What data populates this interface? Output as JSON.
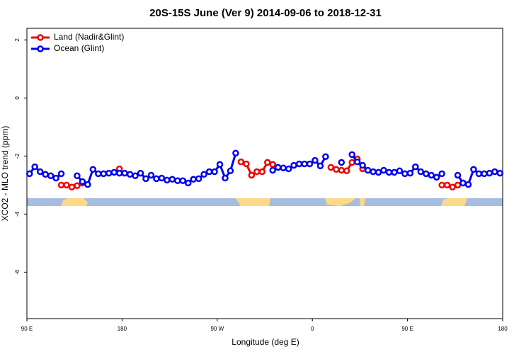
{
  "chart_data": {
    "type": "line",
    "title": "20S-15S June (Ver 9)   2014-09-06 to 2018-12-31",
    "x_label": "Longitude (deg E)",
    "y_label": "XCO2 - MLO trend (ppm)",
    "xlim": [
      90,
      540
    ],
    "ylim": [
      -7.6,
      2.4
    ],
    "xticks": [
      {
        "value": 90,
        "label": "90 E"
      },
      180,
      {
        "value": 270,
        "label": "90 W"
      },
      {
        "value": 360,
        "label": "0"
      },
      {
        "value": 450,
        "label": "90 E"
      },
      {
        "value": 540,
        "label": "180"
      }
    ],
    "yticks": [
      2,
      0,
      -2,
      -4,
      -6
    ],
    "legend": "top-left",
    "series": [
      {
        "name": "Land (Nadir&Glint)",
        "color": "#ee0000",
        "x": [
          122.5,
          127.5,
          132.5,
          137.5,
          142.5,
          null,
          177.5,
          null,
          292.5,
          297.5,
          302.5,
          307.5,
          312.5,
          317.5,
          322.5,
          null,
          377.5,
          382.5,
          387.5,
          392.5,
          397.5,
          402.5,
          407.5,
          null,
          482.5,
          487.5,
          492.5,
          497.5,
          502.5
        ],
        "values": [
          -3.0,
          -3.0,
          -3.07,
          -3.02,
          -2.93,
          null,
          -2.44,
          null,
          -2.2,
          -2.27,
          -2.66,
          -2.54,
          -2.54,
          -2.22,
          -2.29,
          null,
          -2.39,
          -2.46,
          -2.49,
          -2.51,
          -2.22,
          -2.1,
          -2.44,
          null,
          -3.0,
          -3.0,
          -3.07,
          -3.0,
          -2.93
        ]
      },
      {
        "name": "Ocean (Glint)",
        "color": "#0000ee",
        "x": [
          92.5,
          97.5,
          102.5,
          107.5,
          112.5,
          117.5,
          122.5,
          null,
          137.5,
          142.5,
          147.5,
          152.5,
          157.5,
          162.5,
          167.5,
          172.5,
          177.5,
          182.5,
          187.5,
          192.5,
          197.5,
          202.5,
          207.5,
          212.5,
          217.5,
          222.5,
          227.5,
          232.5,
          237.5,
          242.5,
          247.5,
          252.5,
          257.5,
          262.5,
          267.5,
          272.5,
          277.5,
          282.5,
          287.5,
          null,
          322.5,
          327.5,
          332.5,
          337.5,
          342.5,
          347.5,
          352.5,
          357.5,
          362.5,
          367.5,
          372.5,
          null,
          387.5,
          null,
          397.5,
          402.5,
          407.5,
          412.5,
          417.5,
          422.5,
          427.5,
          432.5,
          437.5,
          442.5,
          447.5,
          452.5,
          457.5,
          462.5,
          467.5,
          472.5,
          477.5,
          482.5,
          null,
          497.5,
          502.5,
          507.5,
          512.5,
          517.5,
          522.5,
          527.5,
          532.5,
          537.5
        ],
        "values": [
          -2.61,
          -2.37,
          -2.54,
          -2.63,
          -2.68,
          -2.76,
          -2.61,
          null,
          -2.68,
          -2.88,
          -2.98,
          -2.46,
          -2.61,
          -2.61,
          -2.59,
          -2.56,
          -2.59,
          -2.59,
          -2.63,
          -2.68,
          -2.59,
          -2.78,
          -2.66,
          -2.78,
          -2.76,
          -2.83,
          -2.8,
          -2.85,
          -2.85,
          -2.93,
          -2.8,
          -2.78,
          -2.63,
          -2.54,
          -2.54,
          -2.29,
          -2.76,
          -2.51,
          -1.9,
          null,
          -2.49,
          -2.39,
          -2.41,
          -2.44,
          -2.32,
          -2.27,
          -2.27,
          -2.27,
          -2.15,
          -2.34,
          -2.02,
          null,
          -2.22,
          null,
          -1.95,
          -2.2,
          -2.32,
          -2.49,
          -2.54,
          -2.56,
          -2.49,
          -2.56,
          -2.56,
          -2.51,
          -2.61,
          -2.59,
          -2.37,
          -2.54,
          -2.61,
          -2.66,
          -2.73,
          -2.61,
          null,
          -2.66,
          -2.93,
          -2.98,
          -2.46,
          -2.61,
          -2.61,
          -2.59,
          -2.54,
          -2.59
        ]
      }
    ]
  }
}
